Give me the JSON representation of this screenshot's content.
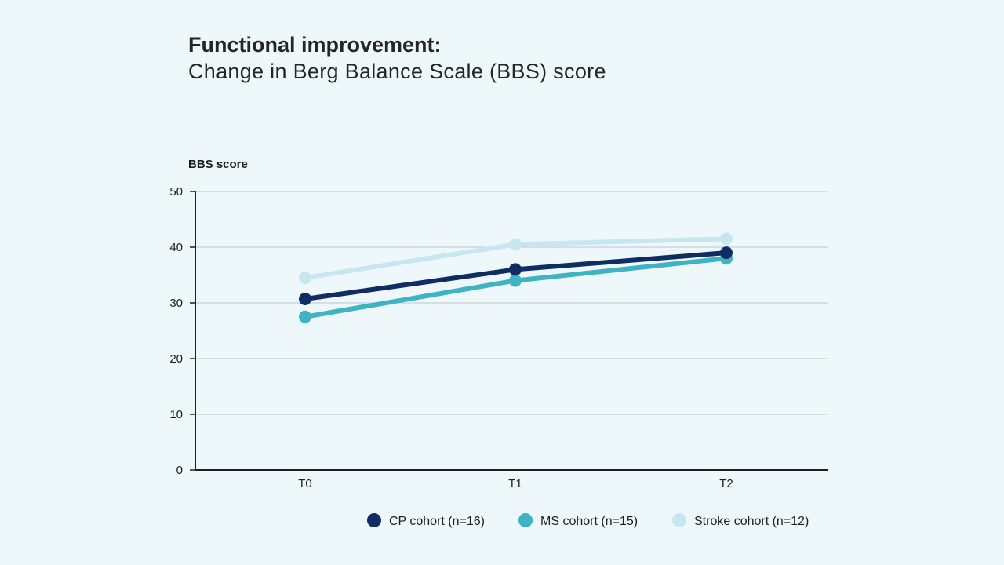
{
  "header": {
    "title": "Functional improvement:",
    "subtitle": "Change in Berg Balance Scale (BBS) score"
  },
  "chart_data": {
    "type": "line",
    "ylabel": "BBS score",
    "xlabel": "",
    "ylim": [
      0,
      50
    ],
    "yticks": [
      "0",
      "10",
      "20",
      "30",
      "40",
      "50"
    ],
    "categories": [
      "T0",
      "T1",
      "T2"
    ],
    "grid": true,
    "legend_position": "bottom-right",
    "series": [
      {
        "name": "Stroke cohort (n=12)",
        "values": [
          34.5,
          40.5,
          41.5
        ],
        "color": "#c8e6ef"
      },
      {
        "name": "MS cohort (n=15)",
        "values": [
          27.5,
          34,
          38
        ],
        "color": "#3fb3c4"
      },
      {
        "name": "CP cohort (n=16)",
        "values": [
          30.7,
          36,
          39
        ],
        "color": "#0f2d63"
      }
    ],
    "legend_order": [
      2,
      1,
      0
    ]
  }
}
